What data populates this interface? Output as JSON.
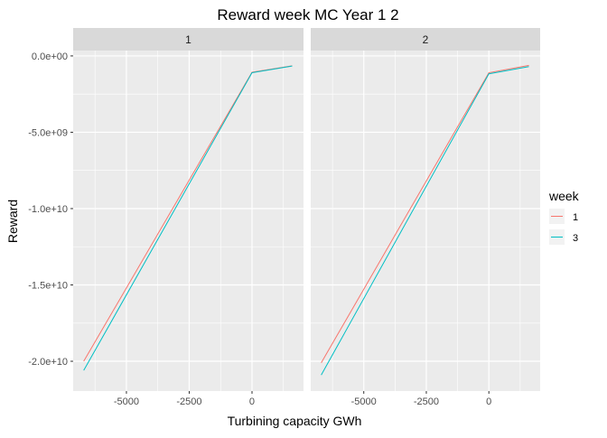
{
  "chart_data": {
    "type": "line",
    "title": "Reward week  MC Year 1 2",
    "xlabel": "Turbining capacity GWh",
    "ylabel": "Reward",
    "xlim": [
      -7120,
      2050
    ],
    "ylim": [
      -21950000000.0,
      350000000.0
    ],
    "x_ticks": [
      -5000,
      -2500,
      0
    ],
    "x_tick_labels": [
      "-5000",
      "-2500",
      "0"
    ],
    "x_minor": [
      -6250,
      -3750,
      -1250,
      1250
    ],
    "y_ticks": [
      0,
      -5000000000.0,
      -10000000000.0,
      -15000000000.0,
      -20000000000.0
    ],
    "y_tick_labels": [
      "0.0e+00",
      "-5.0e+09",
      "-1.0e+10",
      "-1.5e+10",
      "-2.0e+10"
    ],
    "y_minor": [
      -2500000000.0,
      -7500000000.0,
      -12500000000.0,
      -17500000000.0
    ],
    "grid": true,
    "legend": {
      "title": "week",
      "position": "right",
      "entries": [
        "1",
        "3"
      ]
    },
    "colors": {
      "1": "#F8766D",
      "3": "#00BFC4"
    },
    "panels": [
      {
        "label": "1",
        "series": [
          {
            "name": "1",
            "x": [
              -6700,
              0,
              1600
            ],
            "y": [
              -20000000000.0,
              -1070000000.0,
              -650000000.0
            ]
          },
          {
            "name": "3",
            "x": [
              -6700,
              0,
              1600
            ],
            "y": [
              -20600000000.0,
              -1100000000.0,
              -660000000.0
            ]
          }
        ]
      },
      {
        "label": "2",
        "series": [
          {
            "name": "1",
            "x": [
              -6700,
              0,
              1600
            ],
            "y": [
              -20100000000.0,
              -1100000000.0,
              -620000000.0
            ]
          },
          {
            "name": "3",
            "x": [
              -6700,
              0,
              1600
            ],
            "y": [
              -20900000000.0,
              -1170000000.0,
              -700000000.0
            ]
          }
        ]
      }
    ]
  }
}
